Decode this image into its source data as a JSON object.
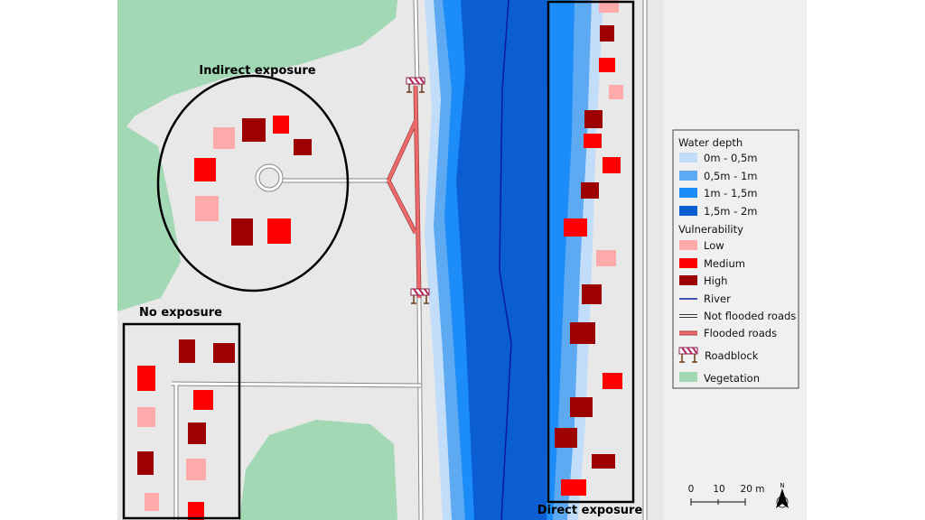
{
  "labels": {
    "indirect": "Indirect exposure",
    "none": "No exposure",
    "direct": "Direct exposure"
  },
  "legend": {
    "water_title": "Water depth",
    "water": [
      {
        "label": "0m - 0,5m",
        "color": "#c2ddf9"
      },
      {
        "label": "0,5m - 1m",
        "color": "#5eaaf2"
      },
      {
        "label": "1m - 1,5m",
        "color": "#1b8cf8"
      },
      {
        "label": "1,5m - 2m",
        "color": "#0b5ed1"
      }
    ],
    "vuln_title": "Vulnerability",
    "vulnerability": [
      {
        "label": "Low",
        "color": "#fcaaaa"
      },
      {
        "label": "Medium",
        "color": "#fe0000"
      },
      {
        "label": "High",
        "color": "#9c0000"
      }
    ],
    "river": {
      "label": "River",
      "color": "#0a1aa0"
    },
    "not_flooded": {
      "label": "Not flooded roads"
    },
    "flooded": {
      "label": "Flooded roads",
      "color": "#ee6a6a"
    },
    "roadblock": {
      "label": "Roadblock",
      "icon": "roadblock-icon"
    },
    "vegetation": {
      "label": "Vegetation",
      "color": "#a2d8b3"
    }
  },
  "scale": {
    "ticks": [
      "0",
      "10",
      "20 m"
    ]
  },
  "north": {
    "label": "N",
    "icon": "north-arrow-icon"
  }
}
